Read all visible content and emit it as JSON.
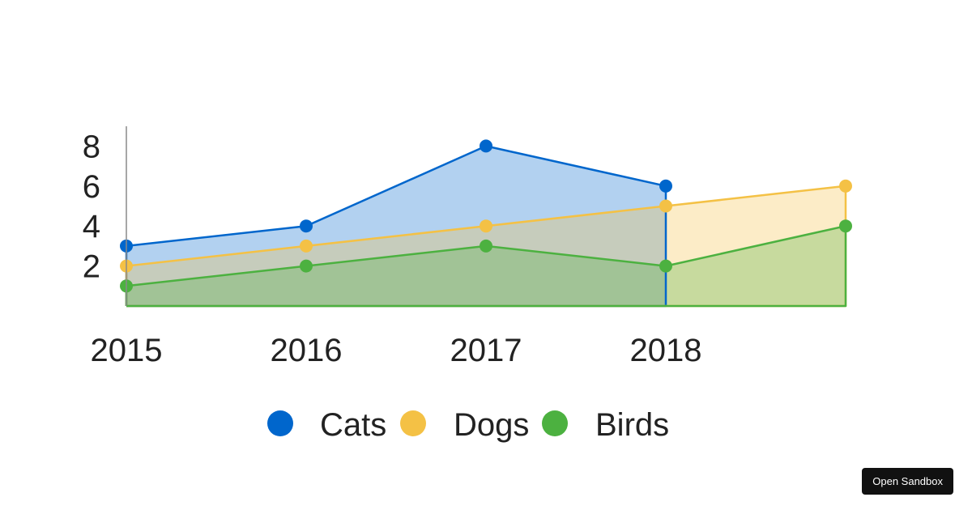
{
  "chart_data": {
    "type": "area",
    "categories": [
      "2015",
      "2016",
      "2017",
      "2018",
      ""
    ],
    "series": [
      {
        "name": "Cats",
        "values": [
          3,
          4,
          8,
          6,
          null
        ],
        "color": "#0066cc"
      },
      {
        "name": "Dogs",
        "values": [
          2,
          3,
          4,
          5,
          6
        ],
        "color": "#f4c145"
      },
      {
        "name": "Birds",
        "values": [
          1,
          2,
          3,
          2,
          4
        ],
        "color": "#4cb140"
      }
    ],
    "yticks": [
      "2",
      "4",
      "6",
      "8"
    ],
    "ylim": [
      0,
      9
    ],
    "legend": "bottom",
    "grid": false,
    "xlabel": "",
    "ylabel": "",
    "title": ""
  },
  "sandbox": {
    "label": "Open Sandbox"
  }
}
